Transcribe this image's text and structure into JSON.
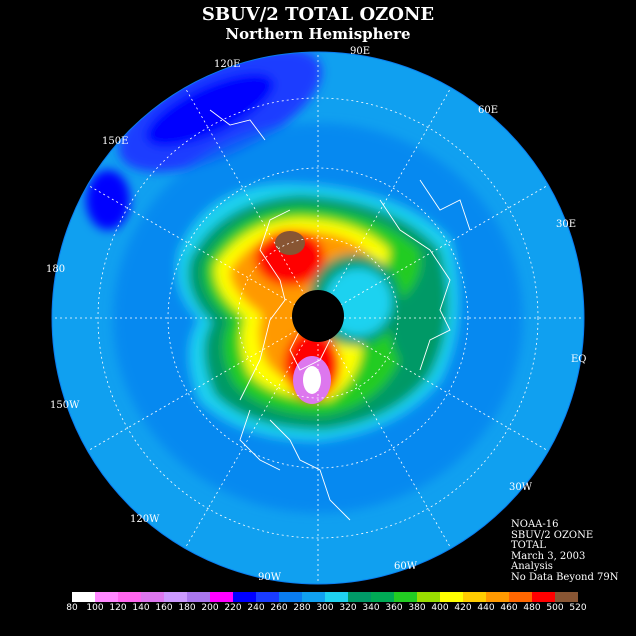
{
  "title": "SBUV/2 TOTAL OZONE",
  "subtitle": "Northern Hemisphere",
  "longitudes": [
    {
      "name": "90e",
      "label": "90E"
    },
    {
      "name": "60e",
      "label": "60E"
    },
    {
      "name": "30e",
      "label": "30E"
    },
    {
      "name": "eq",
      "label": "EQ"
    },
    {
      "name": "30w",
      "label": "30W"
    },
    {
      "name": "60w",
      "label": "60W"
    },
    {
      "name": "90w",
      "label": "90W"
    },
    {
      "name": "120w",
      "label": "120W"
    },
    {
      "name": "150w",
      "label": "150W"
    },
    {
      "name": "180",
      "label": "180"
    },
    {
      "name": "150e",
      "label": "150E"
    },
    {
      "name": "120e",
      "label": "120E"
    }
  ],
  "info": {
    "satellite": "NOAA-16",
    "product": "SBUV/2 OZONE",
    "field": "TOTAL",
    "date": "March 3, 2003",
    "type": "Analysis",
    "coverage": "No Data Beyond 79N"
  },
  "scale": {
    "levels": [
      "80",
      "100",
      "120",
      "140",
      "160",
      "180",
      "200",
      "220",
      "240",
      "260",
      "280",
      "300",
      "320",
      "340",
      "360",
      "380",
      "400",
      "420",
      "440",
      "460",
      "480",
      "500",
      "520"
    ],
    "colors": [
      "#ffffff",
      "#ff88ff",
      "#ff66ee",
      "#dd77ee",
      "#cc99ff",
      "#aa77ee",
      "#ff00ff",
      "#0000ff",
      "#1a3cff",
      "#0a7cf0",
      "#10a0f0",
      "#1fd2f0",
      "#009966",
      "#00aa55",
      "#22cc22",
      "#99dd00",
      "#ffff00",
      "#ffcc00",
      "#ff9900",
      "#ff6600",
      "#ff0000",
      "#885533"
    ]
  }
}
